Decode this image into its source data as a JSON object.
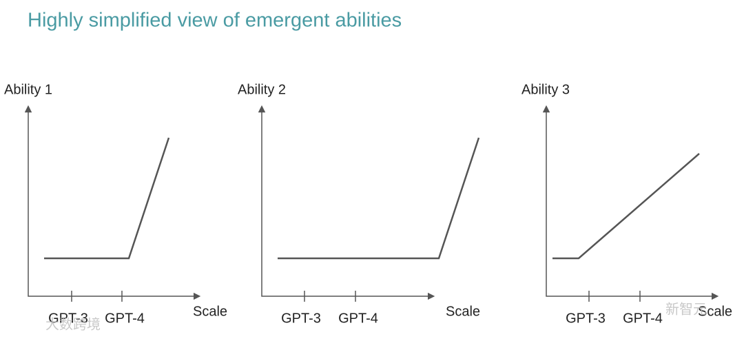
{
  "title": "Highly simplified view of emergent abilities",
  "panels": [
    {
      "y_label": "Ability 1",
      "x_label": "Scale",
      "ticks": [
        "GPT-3",
        "GPT-4"
      ]
    },
    {
      "y_label": "Ability 2",
      "x_label": "Scale",
      "ticks": [
        "GPT-3",
        "GPT-4"
      ]
    },
    {
      "y_label": "Ability 3",
      "x_label": "Scale",
      "ticks": [
        "GPT-3",
        "GPT-4"
      ]
    }
  ],
  "watermarks": [
    "新智元",
    "大数跨境"
  ]
}
